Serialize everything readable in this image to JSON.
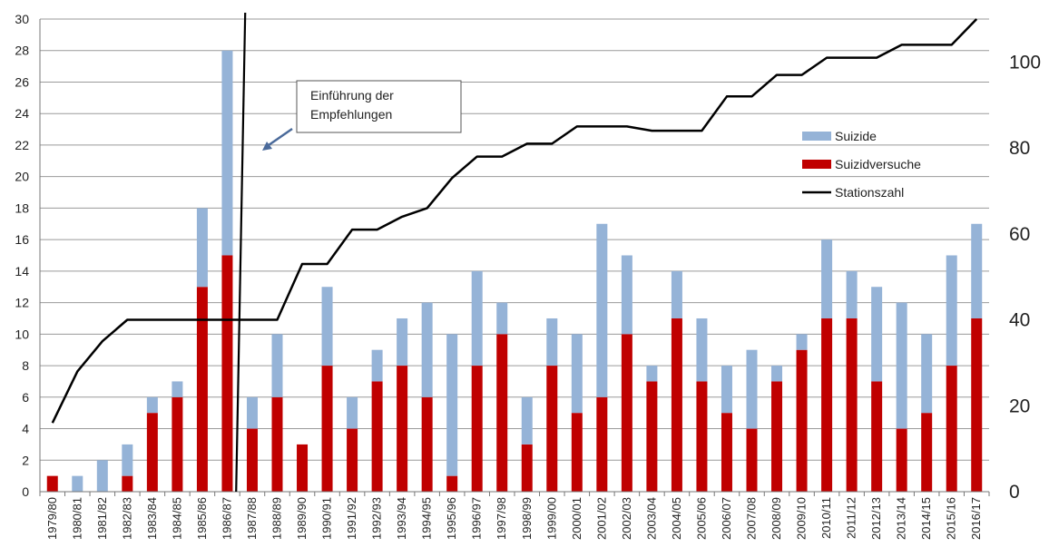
{
  "chart_data": {
    "type": "bar",
    "stacked": true,
    "categories": [
      "1979/80",
      "1980/81",
      "1981/82",
      "1982/83",
      "1983/84",
      "1984/85",
      "1985/86",
      "1986/87",
      "1987/88",
      "1988/89",
      "1989/90",
      "1990/91",
      "1991/92",
      "1992/93",
      "1993/94",
      "1994/95",
      "1995/96",
      "1996/97",
      "1997/98",
      "1998/99",
      "1999/00",
      "2000/01",
      "2001/02",
      "2002/03",
      "2003/04",
      "2004/05",
      "2005/06",
      "2006/07",
      "2007/08",
      "2008/09",
      "2009/10",
      "2010/11",
      "2011/12",
      "2012/13",
      "2013/14",
      "2014/15",
      "2015/16",
      "2016/17"
    ],
    "series": [
      {
        "name": "Suizidversuche",
        "type": "bar",
        "axis": "left",
        "color": "#c00000",
        "values": [
          1,
          0,
          0,
          1,
          5,
          6,
          13,
          15,
          4,
          6,
          3,
          8,
          4,
          7,
          8,
          6,
          1,
          8,
          10,
          3,
          8,
          5,
          6,
          10,
          7,
          11,
          7,
          5,
          4,
          7,
          9,
          11,
          11,
          7,
          4,
          5,
          8,
          11
        ]
      },
      {
        "name": "Suizide",
        "type": "bar",
        "axis": "left",
        "color": "#95b3d7",
        "values": [
          0,
          1,
          2,
          2,
          1,
          1,
          5,
          13,
          2,
          4,
          0,
          5,
          2,
          2,
          3,
          6,
          9,
          6,
          2,
          3,
          3,
          5,
          11,
          5,
          1,
          3,
          4,
          3,
          5,
          1,
          1,
          5,
          3,
          6,
          8,
          5,
          7,
          6
        ]
      },
      {
        "name": "Stationszahl",
        "type": "line",
        "axis": "right",
        "color": "#000000",
        "values": [
          16,
          28,
          35,
          40,
          40,
          40,
          40,
          40,
          40,
          40,
          53,
          53,
          61,
          61,
          64,
          66,
          73,
          78,
          78,
          81,
          81,
          85,
          85,
          85,
          84,
          84,
          84,
          92,
          92,
          97,
          97,
          101,
          101,
          101,
          104,
          104,
          104,
          110
        ]
      }
    ],
    "yleft": {
      "lim": [
        0,
        30
      ],
      "ticks": [
        0,
        2,
        4,
        6,
        8,
        10,
        12,
        14,
        16,
        18,
        20,
        22,
        24,
        26,
        28,
        30
      ]
    },
    "yright": {
      "lim": [
        0,
        110
      ],
      "ticks": [
        0,
        20,
        40,
        60,
        80,
        100
      ]
    },
    "grid": true,
    "legend_position": "right",
    "legend_order": [
      "Suizide",
      "Suizidversuche",
      "Stationszahl"
    ],
    "marker": {
      "between": [
        "1986/87",
        "1987/88"
      ],
      "label_line1": "Einführung der",
      "label_line2": "Empfehlungen"
    }
  }
}
